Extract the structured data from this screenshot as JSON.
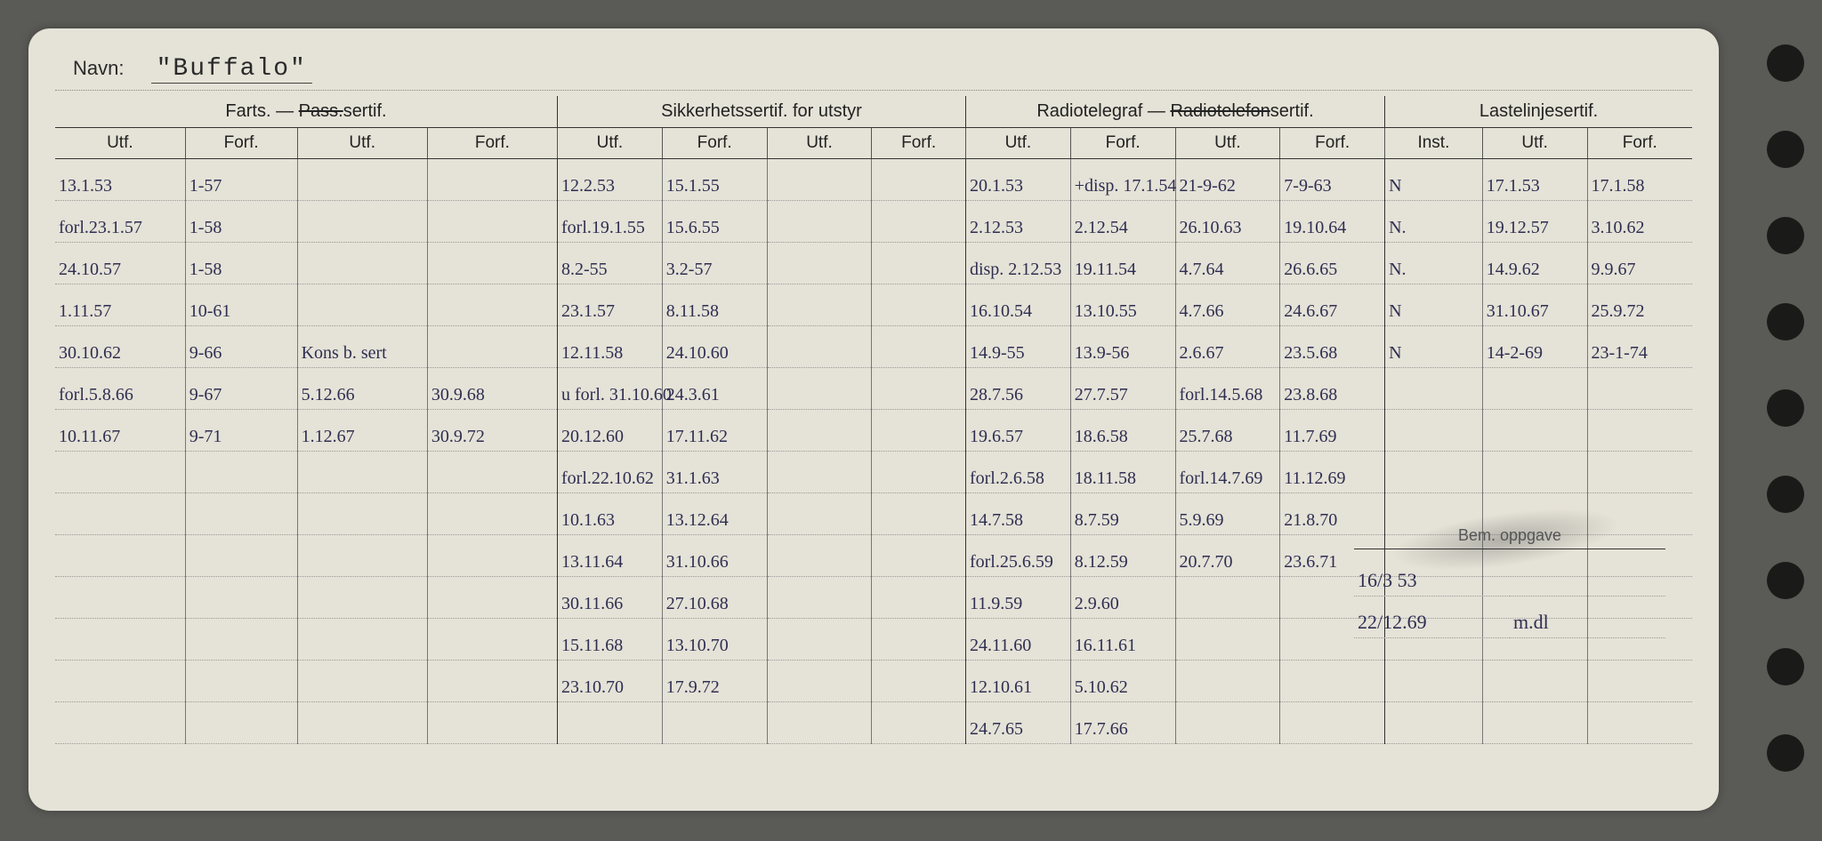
{
  "navn_label": "Navn:",
  "navn_value": "\"Buffalo\"",
  "headers": {
    "g1": "Farts. — Pass.sertif.",
    "g1_strike": "Pass.",
    "g2": "Sikkerhetssertif. for utstyr",
    "g3_a": "Radiotelegraf — ",
    "g3_strike": "Radiotelefon",
    "g3_b": "sertif.",
    "g4": "Lastelinjesertif.",
    "utf": "Utf.",
    "forf": "Forf.",
    "inst": "Inst."
  },
  "bem_label": "Bem. oppgave",
  "bem_rows": [
    [
      "16/3 53",
      ""
    ],
    [
      "22/12.69",
      "m.dl"
    ]
  ],
  "rows": [
    {
      "f1": "13.1.53",
      "f2": "1-57",
      "f3": "",
      "f4": "",
      "s1": "12.2.53",
      "s2": "15.1.55",
      "s3": "",
      "s4": "",
      "r1": "20.1.53",
      "r2": "+disp. 17.1.54",
      "r3": "21-9-62",
      "r4": "7-9-63",
      "l1": "N",
      "l2": "17.1.53",
      "l3": "17.1.58"
    },
    {
      "f1": "forl.23.1.57",
      "f2": "1-58",
      "f3": "",
      "f4": "",
      "s1": "forl.19.1.55",
      "s2": "15.6.55",
      "s3": "",
      "s4": "",
      "r1": "2.12.53",
      "r2": "2.12.54",
      "r3": "26.10.63",
      "r4": "19.10.64",
      "l1": "N.",
      "l2": "19.12.57",
      "l3": "3.10.62"
    },
    {
      "f1": "24.10.57",
      "f2": "1-58",
      "f3": "",
      "f4": "",
      "s1": "8.2-55",
      "s2": "3.2-57",
      "s3": "",
      "s4": "",
      "r1": "disp. 2.12.53",
      "r2": "19.11.54",
      "r3": "4.7.64",
      "r4": "26.6.65",
      "l1": "N.",
      "l2": "14.9.62",
      "l3": "9.9.67"
    },
    {
      "f1": "1.11.57",
      "f2": "10-61",
      "f3": "",
      "f4": "",
      "s1": "23.1.57",
      "s2": "8.11.58",
      "s3": "",
      "s4": "",
      "r1": "16.10.54",
      "r2": "13.10.55",
      "r3": "4.7.66",
      "r4": "24.6.67",
      "l1": "N",
      "l2": "31.10.67",
      "l3": "25.9.72"
    },
    {
      "f1": "30.10.62",
      "f2": "9-66",
      "f3": "Kons b. sert",
      "f4": "",
      "s1": "12.11.58",
      "s2": "24.10.60",
      "s3": "",
      "s4": "",
      "r1": "14.9-55",
      "r2": "13.9-56",
      "r3": "2.6.67",
      "r4": "23.5.68",
      "l1": "N",
      "l2": "14-2-69",
      "l3": "23-1-74"
    },
    {
      "f1": "forl.5.8.66",
      "f2": "9-67",
      "f3": "5.12.66",
      "f4": "30.9.68",
      "s1": "u forl. 31.10.60",
      "s2": "24.3.61",
      "s3": "",
      "s4": "",
      "r1": "28.7.56",
      "r2": "27.7.57",
      "r3": "forl.14.5.68",
      "r4": "23.8.68",
      "l1": "",
      "l2": "",
      "l3": ""
    },
    {
      "f1": "10.11.67",
      "f2": "9-71",
      "f3": "1.12.67",
      "f4": "30.9.72",
      "s1": "20.12.60",
      "s2": "17.11.62",
      "s3": "",
      "s4": "",
      "r1": "19.6.57",
      "r2": "18.6.58",
      "r3": "25.7.68",
      "r4": "11.7.69",
      "l1": "",
      "l2": "",
      "l3": ""
    },
    {
      "f1": "",
      "f2": "",
      "f3": "",
      "f4": "",
      "s1": "forl.22.10.62",
      "s2": "31.1.63",
      "s3": "",
      "s4": "",
      "r1": "forl.2.6.58",
      "r2": "18.11.58",
      "r3": "forl.14.7.69",
      "r4": "11.12.69",
      "l1": "",
      "l2": "",
      "l3": ""
    },
    {
      "f1": "",
      "f2": "",
      "f3": "",
      "f4": "",
      "s1": "10.1.63",
      "s2": "13.12.64",
      "s3": "",
      "s4": "",
      "r1": "14.7.58",
      "r2": "8.7.59",
      "r3": "5.9.69",
      "r4": "21.8.70",
      "l1": "",
      "l2": "",
      "l3": ""
    },
    {
      "f1": "",
      "f2": "",
      "f3": "",
      "f4": "",
      "s1": "13.11.64",
      "s2": "31.10.66",
      "s3": "",
      "s4": "",
      "r1": "forl.25.6.59",
      "r2": "8.12.59",
      "r3": "20.7.70",
      "r4": "23.6.71",
      "l1": "",
      "l2": "",
      "l3": ""
    },
    {
      "f1": "",
      "f2": "",
      "f3": "",
      "f4": "",
      "s1": "30.11.66",
      "s2": "27.10.68",
      "s3": "",
      "s4": "",
      "r1": "11.9.59",
      "r2": "2.9.60",
      "r3": "",
      "r4": "",
      "l1": "",
      "l2": "",
      "l3": ""
    },
    {
      "f1": "",
      "f2": "",
      "f3": "",
      "f4": "",
      "s1": "15.11.68",
      "s2": "13.10.70",
      "s3": "",
      "s4": "",
      "r1": "24.11.60",
      "r2": "16.11.61",
      "r3": "",
      "r4": "",
      "l1": "",
      "l2": "",
      "l3": ""
    },
    {
      "f1": "",
      "f2": "",
      "f3": "",
      "f4": "",
      "s1": "23.10.70",
      "s2": "17.9.72",
      "s3": "",
      "s4": "",
      "r1": "12.10.61",
      "r2": "5.10.62",
      "r3": "",
      "r4": "",
      "l1": "",
      "l2": "",
      "l3": ""
    },
    {
      "f1": "",
      "f2": "",
      "f3": "",
      "f4": "",
      "s1": "",
      "s2": "",
      "s3": "",
      "s4": "",
      "r1": "24.7.65",
      "r2": "17.7.66",
      "r3": "",
      "r4": "",
      "l1": "",
      "l2": "",
      "l3": ""
    }
  ],
  "colors": {
    "background": "#5a5a56",
    "card": "#e5e2d7",
    "ink_handwriting": "#2e2e52",
    "ink_print": "#222222",
    "rule_line": "#333333",
    "dotted": "#999999"
  }
}
